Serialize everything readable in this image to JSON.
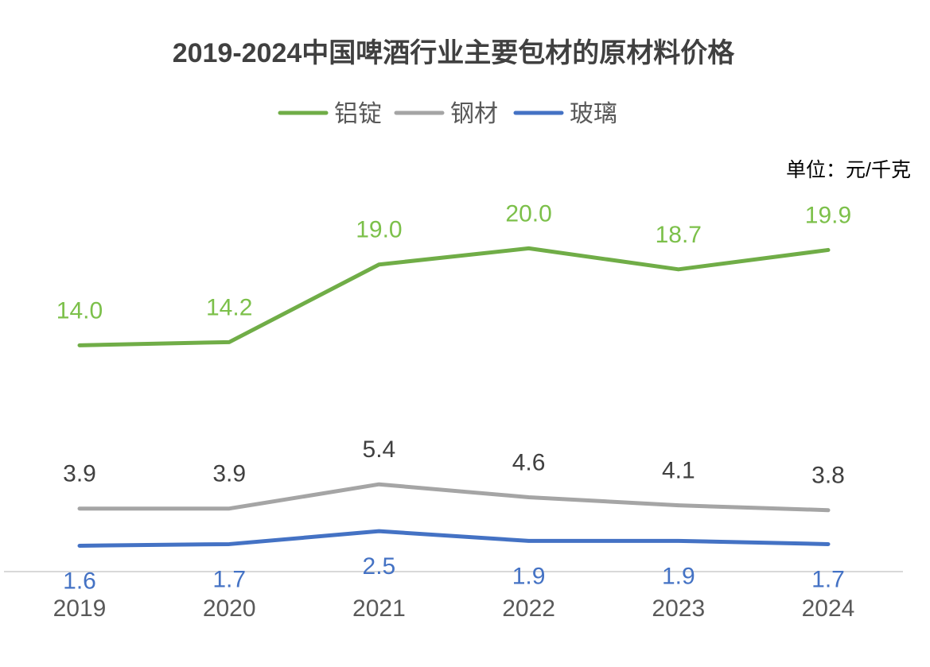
{
  "chart_data": {
    "type": "line",
    "title": "2019-2024中国啤酒行业主要包材的原材料价格",
    "unit_label": "单位：元/千克",
    "categories": [
      "2019",
      "2020",
      "2021",
      "2022",
      "2023",
      "2024"
    ],
    "series": [
      {
        "name": "铝锭",
        "color": "#70AD47",
        "label_color": "#7CC04A",
        "label_pos": "above",
        "values": [
          14.0,
          14.2,
          19.0,
          20.0,
          18.7,
          19.9
        ]
      },
      {
        "name": "钢材",
        "color": "#A5A5A5",
        "label_color": "#404040",
        "label_pos": "above",
        "values": [
          3.9,
          3.9,
          5.4,
          4.6,
          4.1,
          3.8
        ]
      },
      {
        "name": "玻璃",
        "color": "#4472C4",
        "label_color": "#4472C4",
        "label_pos": "below",
        "values": [
          1.6,
          1.7,
          2.5,
          1.9,
          1.9,
          1.7
        ]
      }
    ],
    "xlabel": "",
    "ylabel": "",
    "ylim": [
      0,
      22
    ],
    "grid": false,
    "legend_placement": "top-center"
  }
}
